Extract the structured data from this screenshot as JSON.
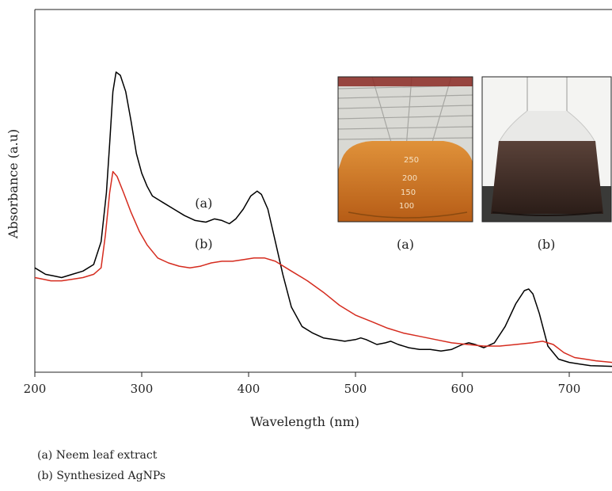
{
  "chart_data": {
    "type": "line",
    "title": "",
    "xlabel": "Wavelength (nm)",
    "ylabel": "Absorbance (a.u)",
    "xlim": [
      200,
      740
    ],
    "ylim": [
      0,
      1
    ],
    "x_ticks": [
      200,
      300,
      400,
      500,
      600,
      700
    ],
    "x_tick_labels": [
      "200",
      "300",
      "400",
      "500",
      "600",
      "700"
    ],
    "grid": false,
    "series": [
      {
        "name": "(a)",
        "color": "#000000",
        "points": [
          [
            200,
            0.32
          ],
          [
            205,
            0.31
          ],
          [
            210,
            0.3
          ],
          [
            218,
            0.295
          ],
          [
            225,
            0.29
          ],
          [
            235,
            0.3
          ],
          [
            245,
            0.31
          ],
          [
            255,
            0.33
          ],
          [
            262,
            0.4
          ],
          [
            267,
            0.55
          ],
          [
            270,
            0.7
          ],
          [
            273,
            0.86
          ],
          [
            276,
            0.92
          ],
          [
            280,
            0.91
          ],
          [
            285,
            0.86
          ],
          [
            290,
            0.77
          ],
          [
            295,
            0.67
          ],
          [
            300,
            0.61
          ],
          [
            305,
            0.57
          ],
          [
            310,
            0.54
          ],
          [
            320,
            0.52
          ],
          [
            330,
            0.5
          ],
          [
            340,
            0.48
          ],
          [
            350,
            0.465
          ],
          [
            360,
            0.46
          ],
          [
            368,
            0.47
          ],
          [
            375,
            0.465
          ],
          [
            382,
            0.455
          ],
          [
            388,
            0.47
          ],
          [
            395,
            0.5
          ],
          [
            402,
            0.54
          ],
          [
            408,
            0.555
          ],
          [
            412,
            0.545
          ],
          [
            418,
            0.5
          ],
          [
            425,
            0.4
          ],
          [
            432,
            0.3
          ],
          [
            440,
            0.2
          ],
          [
            450,
            0.14
          ],
          [
            460,
            0.12
          ],
          [
            470,
            0.105
          ],
          [
            480,
            0.1
          ],
          [
            490,
            0.095
          ],
          [
            500,
            0.1
          ],
          [
            505,
            0.105
          ],
          [
            510,
            0.1
          ],
          [
            520,
            0.085
          ],
          [
            528,
            0.09
          ],
          [
            533,
            0.095
          ],
          [
            540,
            0.085
          ],
          [
            550,
            0.075
          ],
          [
            560,
            0.07
          ],
          [
            570,
            0.07
          ],
          [
            580,
            0.065
          ],
          [
            590,
            0.07
          ],
          [
            600,
            0.085
          ],
          [
            606,
            0.09
          ],
          [
            612,
            0.085
          ],
          [
            620,
            0.075
          ],
          [
            630,
            0.09
          ],
          [
            640,
            0.14
          ],
          [
            650,
            0.21
          ],
          [
            658,
            0.25
          ],
          [
            662,
            0.255
          ],
          [
            666,
            0.24
          ],
          [
            672,
            0.18
          ],
          [
            680,
            0.08
          ],
          [
            690,
            0.04
          ],
          [
            700,
            0.03
          ],
          [
            710,
            0.025
          ],
          [
            720,
            0.02
          ],
          [
            740,
            0.018
          ]
        ]
      },
      {
        "name": "(b)",
        "color": "#d52b1e",
        "points": [
          [
            200,
            0.29
          ],
          [
            208,
            0.285
          ],
          [
            215,
            0.28
          ],
          [
            225,
            0.28
          ],
          [
            235,
            0.285
          ],
          [
            245,
            0.29
          ],
          [
            255,
            0.3
          ],
          [
            262,
            0.32
          ],
          [
            266,
            0.42
          ],
          [
            270,
            0.55
          ],
          [
            273,
            0.615
          ],
          [
            277,
            0.6
          ],
          [
            283,
            0.55
          ],
          [
            290,
            0.49
          ],
          [
            298,
            0.43
          ],
          [
            305,
            0.39
          ],
          [
            315,
            0.35
          ],
          [
            325,
            0.335
          ],
          [
            335,
            0.325
          ],
          [
            345,
            0.32
          ],
          [
            355,
            0.325
          ],
          [
            365,
            0.335
          ],
          [
            375,
            0.34
          ],
          [
            385,
            0.34
          ],
          [
            395,
            0.345
          ],
          [
            405,
            0.35
          ],
          [
            415,
            0.35
          ],
          [
            425,
            0.34
          ],
          [
            440,
            0.31
          ],
          [
            455,
            0.28
          ],
          [
            470,
            0.245
          ],
          [
            485,
            0.205
          ],
          [
            500,
            0.175
          ],
          [
            515,
            0.155
          ],
          [
            530,
            0.135
          ],
          [
            545,
            0.12
          ],
          [
            560,
            0.11
          ],
          [
            575,
            0.1
          ],
          [
            590,
            0.09
          ],
          [
            605,
            0.085
          ],
          [
            620,
            0.08
          ],
          [
            635,
            0.08
          ],
          [
            650,
            0.085
          ],
          [
            665,
            0.09
          ],
          [
            675,
            0.095
          ],
          [
            685,
            0.085
          ],
          [
            695,
            0.06
          ],
          [
            705,
            0.045
          ],
          [
            715,
            0.04
          ],
          [
            725,
            0.035
          ],
          [
            740,
            0.03
          ]
        ]
      }
    ],
    "curve_labels": [
      {
        "text": "(a)",
        "x": 358,
        "y": 0.505
      },
      {
        "text": "(b)",
        "x": 358,
        "y": 0.38
      }
    ]
  },
  "insets": [
    {
      "caption": "(a)",
      "icon": "flask-orange-photo",
      "markings": [
        "250",
        "200",
        "150",
        "100"
      ],
      "color": "#d2792a"
    },
    {
      "caption": "(b)",
      "icon": "flask-brown-photo",
      "color": "#3d2a23"
    }
  ],
  "legend": [
    "(a) Neem leaf extract",
    "(b) Synthesized AgNPs"
  ]
}
